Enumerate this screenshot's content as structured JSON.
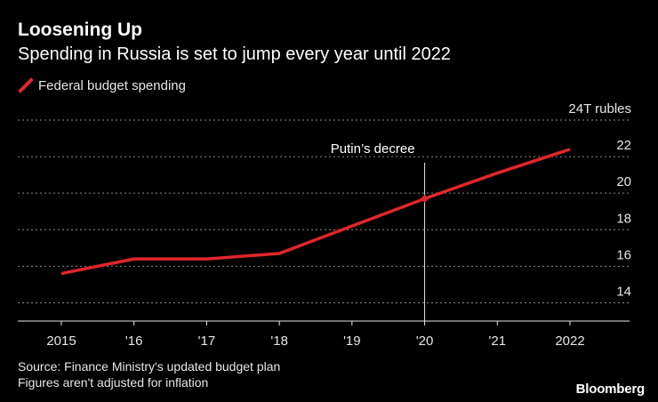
{
  "colors": {
    "background": "#000000",
    "series": "#e0262b",
    "text": "#ffffff",
    "muted_text": "#e6e6e6",
    "grid": "#8c8c8c"
  },
  "chart_data": {
    "type": "line",
    "title": "Loosening Up",
    "subtitle": "Spending in Russia is set to jump every year until 2022",
    "legend": [
      "Federal budget spending"
    ],
    "legend_position": "top-left",
    "x": [
      2015,
      2016,
      2017,
      2018,
      2019,
      2020,
      2021,
      2022
    ],
    "x_tick_labels": [
      "2015",
      "'16",
      "'17",
      "'18",
      "'19",
      "'20",
      "'21",
      "2022"
    ],
    "series": [
      {
        "name": "Federal budget spending",
        "values": [
          15.6,
          16.4,
          16.4,
          16.7,
          18.2,
          19.7,
          21.1,
          22.4
        ]
      }
    ],
    "y_axis": {
      "range": [
        13,
        24
      ],
      "ticks": [
        14,
        16,
        18,
        20,
        22,
        24
      ],
      "tick_labels": [
        "14",
        "16",
        "18",
        "20",
        "22",
        "24T rubles"
      ],
      "side": "right",
      "grid": true
    },
    "annotations": [
      {
        "x": 2020,
        "y": 19.7,
        "label": "Putin’s decree",
        "type": "vertical-line"
      }
    ]
  },
  "footer": {
    "source": "Source: Finance Ministry's updated budget plan",
    "note": "Figures aren't adjusted for inflation",
    "brand": "Bloomberg"
  }
}
